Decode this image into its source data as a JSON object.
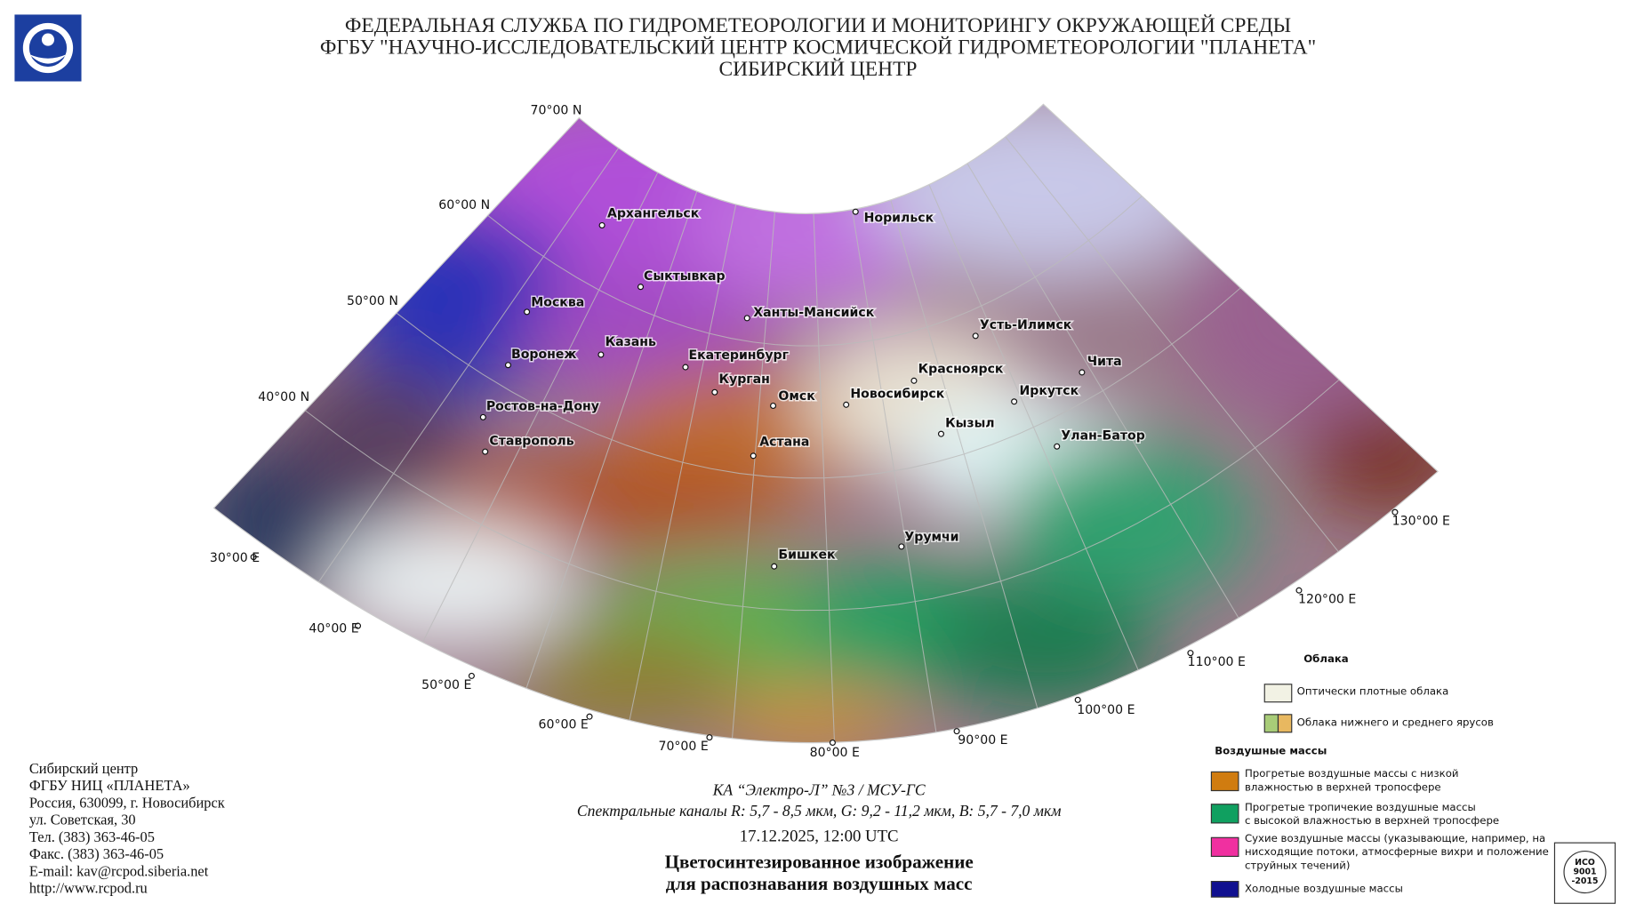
{
  "header": {
    "lines": [
      "ФЕДЕРАЛЬНАЯ СЛУЖБА ПО ГИДРОМЕТЕОРОЛОГИИ И МОНИТОРИНГУ ОКРУЖАЮЩЕЙ СРЕДЫ",
      "ФГБУ \"НАУЧНО-ИССЛЕДОВАТЕЛЬСКИЙ ЦЕНТР КОСМИЧЕСКОЙ ГИДРОМЕТЕОРОЛОГИИ \"ПЛАНЕТА\"",
      "СИБИРСКИЙ ЦЕНТР"
    ]
  },
  "map": {
    "latitude_labels": [
      "70°00 N",
      "60°00 N",
      "50°00 N",
      "40°00 N"
    ],
    "longitude_labels": [
      "30°00 E",
      "40°00 E",
      "50°00 E",
      "60°00 E",
      "70°00 E",
      "80°00 E",
      "90°00 E",
      "100°00 E",
      "110°00 E",
      "120°00 E",
      "130°00 E"
    ],
    "cities": [
      "Архангельск",
      "Норильск",
      "Сыктывкар",
      "Москва",
      "Ханты-Мансийск",
      "Усть-Илимск",
      "Казань",
      "Воронеж",
      "Екатеринбург",
      "Красноярск",
      "Чита",
      "Курган",
      "Омск",
      "Новосибирск",
      "Иркутск",
      "Ростов-на-Дону",
      "Кызыл",
      "Улан-Батор",
      "Ставрополь",
      "Астана",
      "Урумчи",
      "Бишкек"
    ]
  },
  "legend": {
    "clouds_title": "Облака",
    "clouds": [
      [
        "Оптически плотные облака"
      ],
      [
        "Облака нижнего и среднего ярусов"
      ]
    ],
    "air_masses_title": "Воздушные массы",
    "air_masses": [
      [
        "Прогретые воздушные массы с низкой",
        "влажностью в верхней тропосфере"
      ],
      [
        "Прогретые тропичекие воздушные массы",
        "с высокой влажностью в верхней тропосфере"
      ],
      [
        "Сухие воздушные массы (указывающие, например, на",
        "нисходящие потоки, атмосферные вихри и положение",
        "струйных течений)"
      ],
      [
        "Холодные воздушные массы"
      ]
    ]
  },
  "contacts": [
    "Сибирский центр",
    "ФГБУ НИЦ «ПЛАНЕТА»",
    "Россия, 630099, г. Новосибирск",
    "ул. Советская, 30",
    "Тел. (383) 363-46-05",
    "Факс. (383) 363-46-05",
    "E-mail: kav@rcpod.siberia.net",
    "http://www.rcpod.ru"
  ],
  "caption": {
    "satellite": "КА “Электро-Л” №3 / МСУ-ГС",
    "channels": "Спектральные каналы R: 5,7 - 8,5 мкм, G: 9,2 - 11,2 мкм, B: 5,7 - 7,0 мкм",
    "datetime": "17.12.2025, 12:00 UTC",
    "title_lines": [
      "Цветосинтезированное изображение",
      "для распознавания воздушных масс"
    ]
  },
  "badge": {
    "lines": [
      "ИСО",
      "9001",
      "-2015"
    ]
  }
}
